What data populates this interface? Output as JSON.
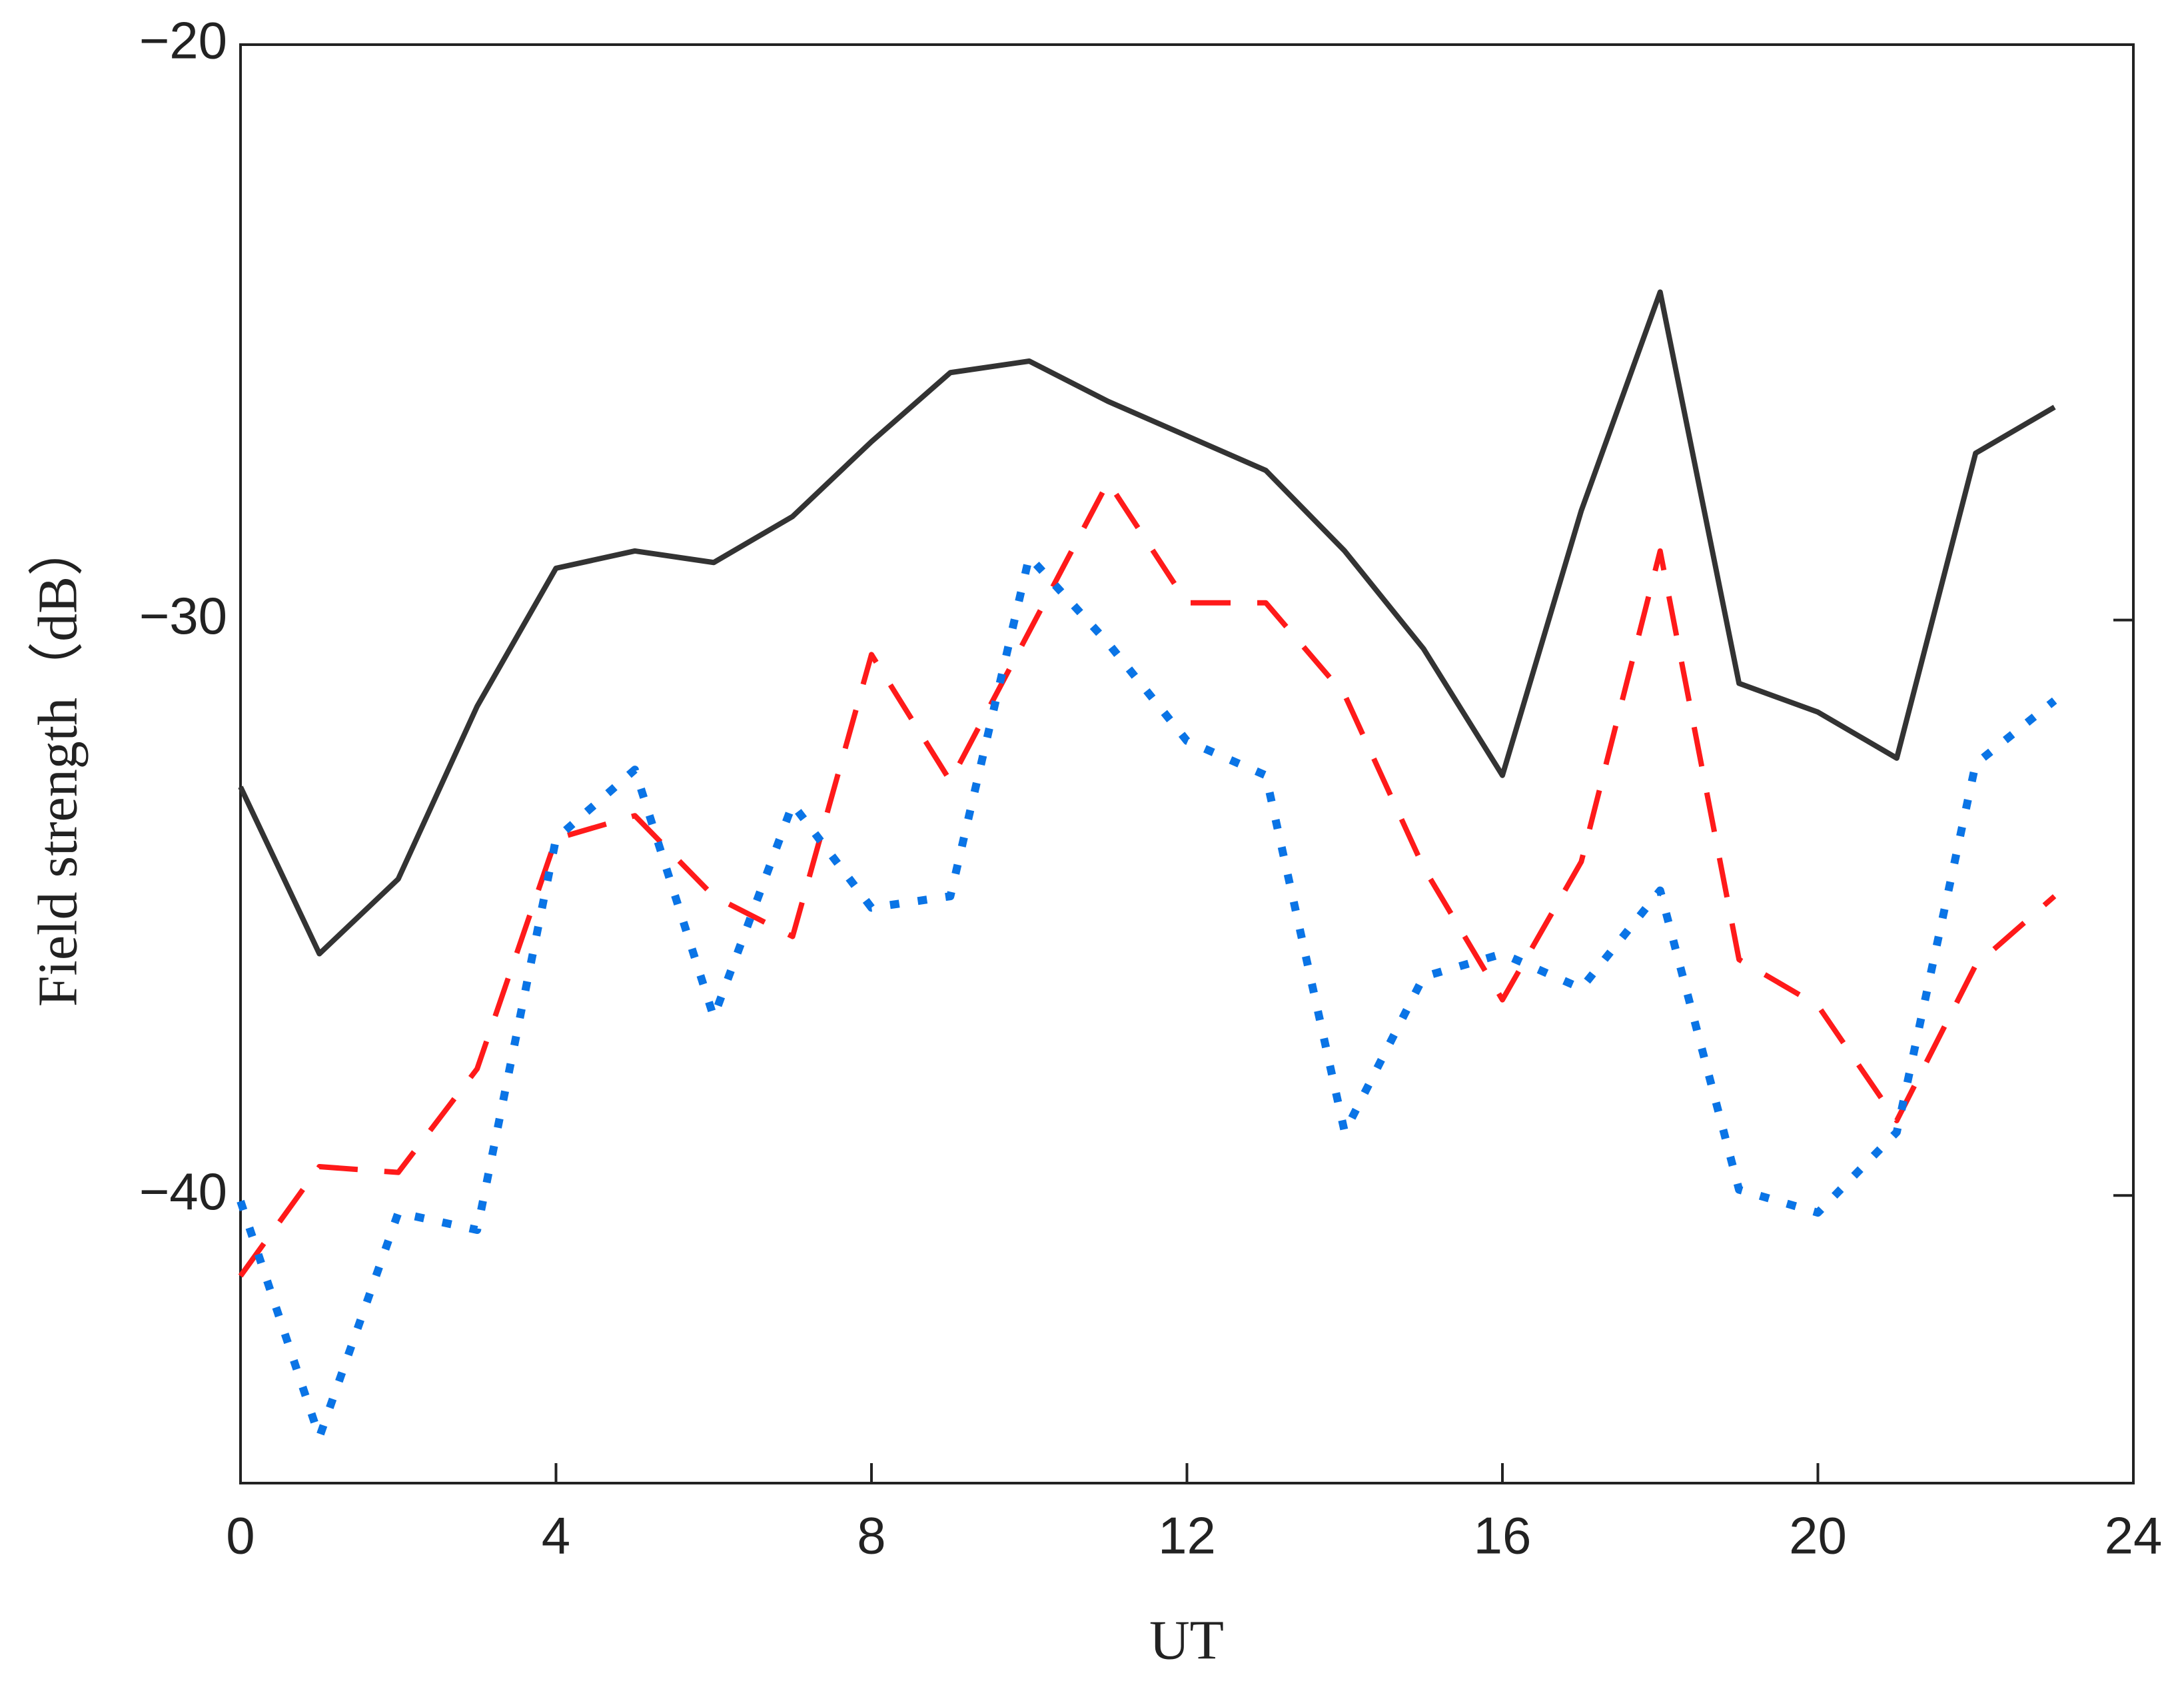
{
  "chart_data": {
    "type": "line",
    "x_label": "UT",
    "y_label": "Field strength（dB）",
    "x": [
      0,
      1,
      2,
      3,
      4,
      5,
      6,
      7,
      8,
      9,
      10,
      11,
      12,
      13,
      14,
      15,
      16,
      17,
      18,
      19,
      20,
      21,
      22,
      23
    ],
    "series": [
      {
        "color": "#333333",
        "dash": "solid",
        "values": [
          -32.9,
          -35.8,
          -34.5,
          -31.5,
          -29.1,
          -28.8,
          -29.0,
          -28.2,
          -26.9,
          -25.7,
          -25.5,
          -26.2,
          -26.8,
          -27.4,
          -28.8,
          -30.5,
          -32.7,
          -28.1,
          -24.3,
          -31.1,
          -31.6,
          -32.4,
          -27.1,
          -26.3
        ]
      },
      {
        "color": "#ff1a1a",
        "dash": "dashed",
        "values": [
          -41.4,
          -39.5,
          -39.6,
          -37.8,
          -33.8,
          -33.4,
          -34.8,
          -35.5,
          -30.6,
          -32.8,
          -30.2,
          -27.6,
          -29.7,
          -29.7,
          -31.3,
          -34.3,
          -36.6,
          -34.2,
          -28.8,
          -35.9,
          -36.7,
          -38.7,
          -36.0,
          -34.8
        ]
      },
      {
        "color": "#0a74e6",
        "dash": "dotted",
        "values": [
          -40.1,
          -44.2,
          -40.3,
          -40.6,
          -33.8,
          -32.6,
          -36.9,
          -33.2,
          -35.0,
          -34.8,
          -28.9,
          -30.4,
          -32.1,
          -32.7,
          -38.9,
          -36.2,
          -35.8,
          -36.4,
          -34.7,
          -39.9,
          -40.3,
          -38.9,
          -32.5,
          -31.4
        ]
      }
    ],
    "xlim": [
      0,
      24
    ],
    "xticks": [
      0,
      4,
      8,
      12,
      16,
      20,
      24
    ],
    "ylim": [
      -45,
      -20
    ],
    "yticks": [
      {
        "value": -20,
        "label": "−20"
      },
      {
        "value": -30,
        "label": "−30"
      },
      {
        "value": -40,
        "label": "−40"
      }
    ],
    "grid": false
  }
}
